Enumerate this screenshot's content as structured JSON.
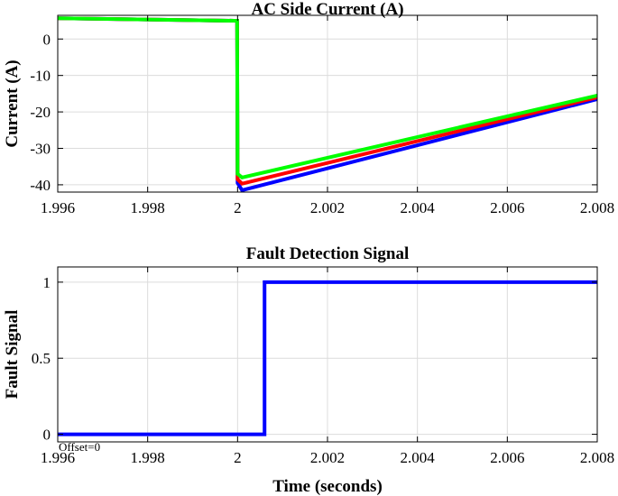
{
  "chart_data": [
    {
      "type": "line",
      "title": "AC Side Current (A)",
      "xlabel": "",
      "ylabel": "Current (A)",
      "xlim": [
        1.996,
        2.008
      ],
      "ylim": [
        -42,
        6.5
      ],
      "xticks": [
        1.996,
        1.998,
        2.0,
        2.002,
        2.004,
        2.006,
        2.008
      ],
      "xtick_labels": [
        "1.996",
        "1.998",
        "2",
        "2.002",
        "2.004",
        "2.006",
        "2.008"
      ],
      "yticks": [
        0,
        -10,
        -20,
        -30,
        -40
      ],
      "ytick_labels": [
        "0",
        "-10",
        "-20",
        "-30",
        "-40"
      ],
      "grid": true,
      "series": [
        {
          "color": "#0000ff",
          "x": [
            1.996,
            1.99999,
            2.0,
            2.0001,
            2.008
          ],
          "y": [
            5.7,
            5.0,
            -39.5,
            -41.5,
            -16.5
          ]
        },
        {
          "color": "#ff0000",
          "x": [
            1.996,
            1.99999,
            2.0,
            2.0001,
            2.008
          ],
          "y": [
            5.7,
            5.0,
            -38.5,
            -39.7,
            -16.0
          ]
        },
        {
          "color": "#00ff00",
          "x": [
            1.996,
            1.99999,
            2.0,
            2.0001,
            2.008
          ],
          "y": [
            5.7,
            5.0,
            -37.0,
            -38.0,
            -15.5
          ]
        }
      ]
    },
    {
      "type": "line",
      "title": "Fault Detection Signal",
      "xlabel": "Time (seconds)",
      "ylabel": "Fault Signal",
      "annotation": "Offset=0",
      "xlim": [
        1.996,
        2.008
      ],
      "ylim": [
        -0.05,
        1.1
      ],
      "xticks": [
        1.996,
        1.998,
        2.0,
        2.002,
        2.004,
        2.006,
        2.008
      ],
      "xtick_labels": [
        "1.996",
        "1.998",
        "2",
        "2.002",
        "2.004",
        "2.006",
        "2.008"
      ],
      "yticks": [
        0,
        0.5,
        1
      ],
      "ytick_labels": [
        "0",
        "0.5",
        "1"
      ],
      "grid": true,
      "series": [
        {
          "color": "#0000ff",
          "x": [
            1.996,
            2.0006,
            2.0006,
            2.008
          ],
          "y": [
            0,
            0,
            1,
            1
          ]
        }
      ]
    }
  ]
}
